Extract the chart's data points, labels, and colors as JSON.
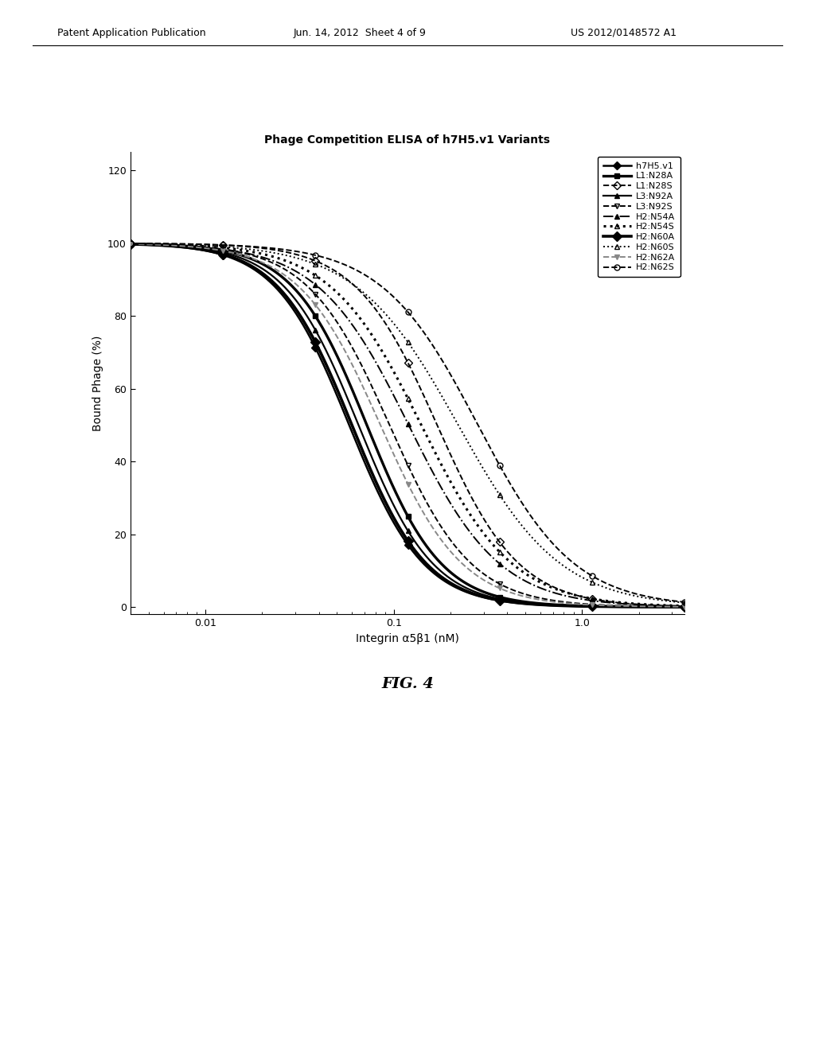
{
  "title": "Phage Competition ELISA of h7H5.v1 Variants",
  "xlabel": "Integrin α5β1 (nM)",
  "ylabel": "Bound Phage (%)",
  "fig_title": "FIG. 4",
  "header_left": "Patent Application Publication",
  "header_center": "Jun. 14, 2012  Sheet 4 of 9",
  "header_right": "US 2012/0148572 A1",
  "xlim_left": 0.004,
  "xlim_right": 3.5,
  "ylim": [
    -2,
    125
  ],
  "yticks": [
    0,
    20,
    40,
    60,
    80,
    100,
    120
  ],
  "xticks": [
    0.01,
    0.1,
    1.0
  ],
  "series": [
    {
      "label": "h7H5.v1",
      "ic50": 0.058,
      "hill": 2.2,
      "color": "#000000",
      "linestyle": "-",
      "marker": "D",
      "markersize": 5,
      "linewidth": 1.8,
      "fillstyle": "full",
      "markevery": 6
    },
    {
      "label": "L1:N28A",
      "ic50": 0.072,
      "hill": 2.2,
      "color": "#000000",
      "linestyle": "-",
      "marker": "s",
      "markersize": 5,
      "linewidth": 2.4,
      "fillstyle": "full",
      "markevery": 6
    },
    {
      "label": "L1:N28S",
      "ic50": 0.17,
      "hill": 2.0,
      "color": "#000000",
      "linestyle": "--",
      "marker": "D",
      "markersize": 5,
      "linewidth": 1.4,
      "fillstyle": "none",
      "markevery": 6
    },
    {
      "label": "L3:N92A",
      "ic50": 0.065,
      "hill": 2.2,
      "color": "#000000",
      "linestyle": "-",
      "marker": "^",
      "markersize": 5,
      "linewidth": 1.6,
      "fillstyle": "full",
      "markevery": 6
    },
    {
      "label": "L3:N92S",
      "ic50": 0.095,
      "hill": 2.0,
      "color": "#000000",
      "linestyle": "--",
      "marker": "v",
      "markersize": 5,
      "linewidth": 1.4,
      "fillstyle": "none",
      "markevery": 6
    },
    {
      "label": "H2:N54A",
      "ic50": 0.12,
      "hill": 1.8,
      "color": "#000000",
      "linestyle": "-.",
      "marker": "^",
      "markersize": 5,
      "linewidth": 1.4,
      "fillstyle": "full",
      "markevery": 6
    },
    {
      "label": "H2:N54S",
      "ic50": 0.14,
      "hill": 1.8,
      "color": "#000000",
      "linestyle": ":",
      "marker": "^",
      "markersize": 5,
      "linewidth": 2.2,
      "fillstyle": "none",
      "markevery": 6
    },
    {
      "label": "H2:N60A",
      "ic50": 0.06,
      "hill": 2.2,
      "color": "#000000",
      "linestyle": "-",
      "marker": "D",
      "markersize": 6,
      "linewidth": 2.6,
      "fillstyle": "full",
      "markevery": 6
    },
    {
      "label": "H2:N60S",
      "ic50": 0.22,
      "hill": 1.6,
      "color": "#000000",
      "linestyle": ":",
      "marker": "^",
      "markersize": 5,
      "linewidth": 1.4,
      "fillstyle": "none",
      "markevery": 6
    },
    {
      "label": "H2:N62A",
      "ic50": 0.085,
      "hill": 2.0,
      "color": "#888888",
      "linestyle": "--",
      "marker": "v",
      "markersize": 5,
      "linewidth": 1.4,
      "fillstyle": "full",
      "markevery": 6
    },
    {
      "label": "H2:N62S",
      "ic50": 0.28,
      "hill": 1.7,
      "color": "#000000",
      "linestyle": "--",
      "marker": "o",
      "markersize": 5,
      "linewidth": 1.4,
      "fillstyle": "none",
      "markevery": 6
    }
  ]
}
